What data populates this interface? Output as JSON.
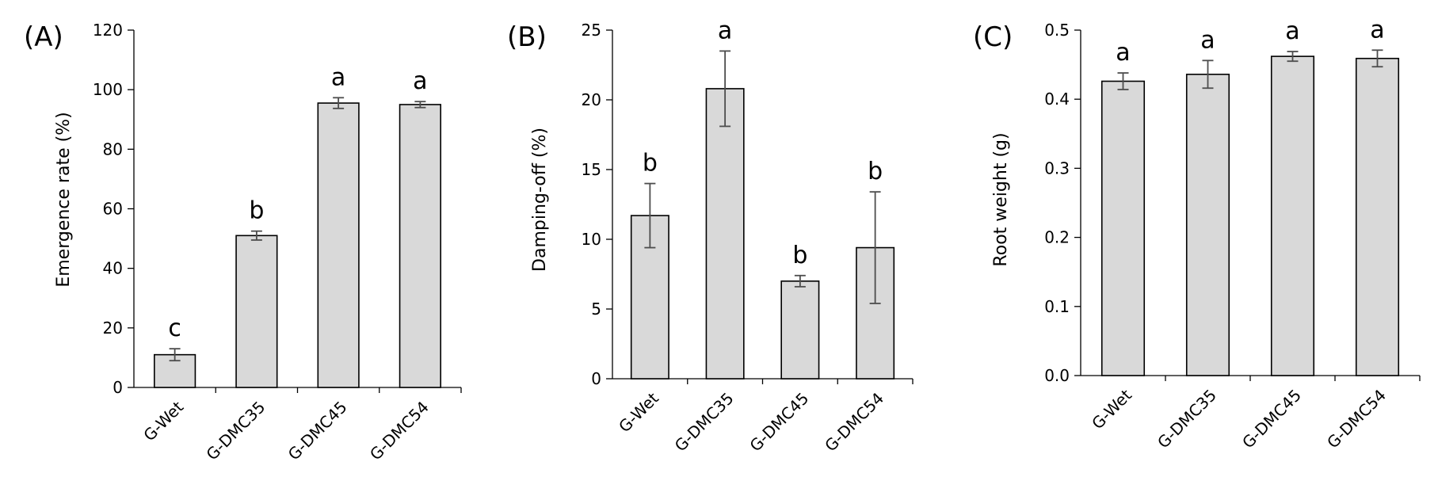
{
  "chart_data": [
    {
      "type": "bar",
      "panel_label": "(A)",
      "ylabel": "Emergence rate (%)",
      "ylim": [
        0,
        120
      ],
      "yticks": [
        "0",
        "20",
        "40",
        "60",
        "80",
        "100",
        "120"
      ],
      "ytick_values": [
        0,
        20,
        40,
        60,
        80,
        100,
        120
      ],
      "categories": [
        "G-Wet",
        "G-DMC35",
        "G-DMC45",
        "G-DMC54"
      ],
      "values": [
        11,
        51,
        95.5,
        95
      ],
      "errors": [
        2,
        1.5,
        1.8,
        1
      ],
      "letters": [
        "c",
        "b",
        "a",
        "a"
      ],
      "grid": false,
      "legend": "none"
    },
    {
      "type": "bar",
      "panel_label": "(B)",
      "ylabel": "Damping-off (%)",
      "ylim": [
        0,
        25
      ],
      "yticks": [
        "0",
        "5",
        "10",
        "15",
        "20",
        "25"
      ],
      "ytick_values": [
        0,
        5,
        10,
        15,
        20,
        25
      ],
      "categories": [
        "G-Wet",
        "G-DMC35",
        "G-DMC45",
        "G-DMC54"
      ],
      "values": [
        11.7,
        20.8,
        7.0,
        9.4
      ],
      "errors": [
        2.3,
        2.7,
        0.4,
        4.0
      ],
      "letters": [
        "b",
        "a",
        "b",
        "b"
      ],
      "grid": false,
      "legend": "none"
    },
    {
      "type": "bar",
      "panel_label": "(C)",
      "ylabel": "Root weight (g)",
      "ylim": [
        0,
        0.5
      ],
      "yticks": [
        "0.0",
        "0.1",
        "0.2",
        "0.3",
        "0.4",
        "0.5"
      ],
      "ytick_values": [
        0,
        0.1,
        0.2,
        0.3,
        0.4,
        0.5
      ],
      "categories": [
        "G-Wet",
        "G-DMC35",
        "G-DMC45",
        "G-DMC54"
      ],
      "values": [
        0.426,
        0.436,
        0.462,
        0.459
      ],
      "errors": [
        0.012,
        0.02,
        0.007,
        0.012
      ],
      "letters": [
        "a",
        "a",
        "a",
        "a"
      ],
      "grid": false,
      "legend": "none"
    }
  ]
}
